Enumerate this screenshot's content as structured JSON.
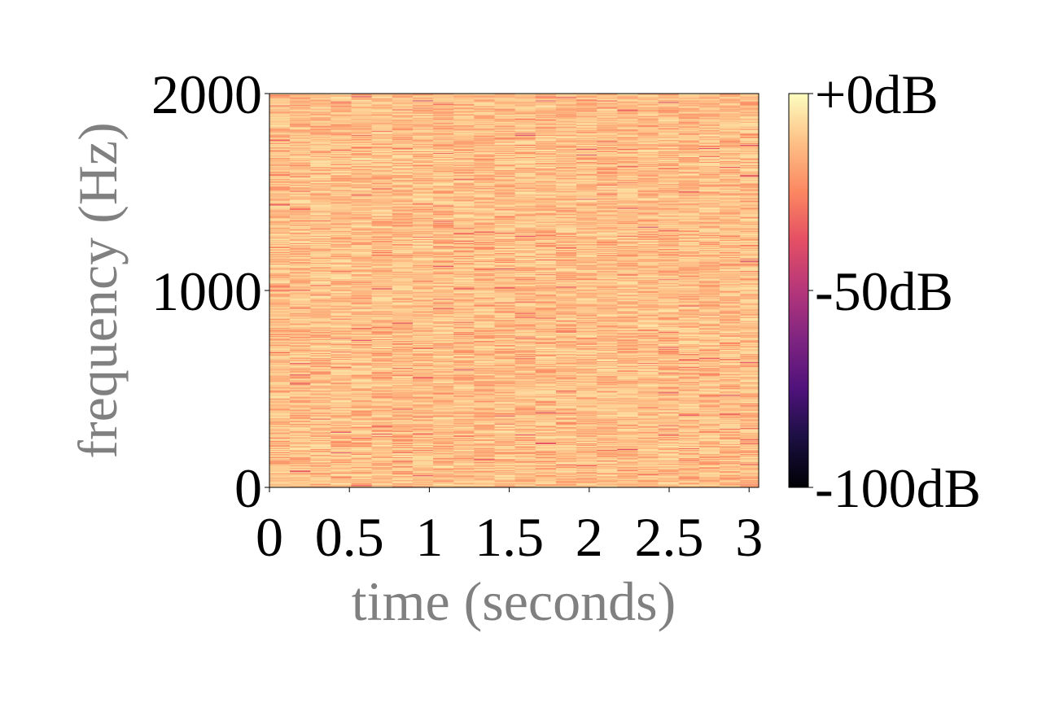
{
  "chart_data": {
    "type": "heatmap",
    "title": "",
    "xlabel": "time (seconds)",
    "ylabel": "frequency (Hz)",
    "xlim": [
      0,
      3.06
    ],
    "ylim": [
      0,
      2000
    ],
    "x_ticks": [
      {
        "value": 0,
        "label": "0"
      },
      {
        "value": 0.5,
        "label": "0.5"
      },
      {
        "value": 1,
        "label": "1"
      },
      {
        "value": 1.5,
        "label": "1.5"
      },
      {
        "value": 2,
        "label": "2"
      },
      {
        "value": 2.5,
        "label": "2.5"
      },
      {
        "value": 3,
        "label": "3"
      }
    ],
    "y_ticks": [
      {
        "value": 0,
        "label": "0"
      },
      {
        "value": 1000,
        "label": "1000"
      },
      {
        "value": 2000,
        "label": "2000"
      }
    ],
    "colorbar": {
      "colormap": "magma",
      "range_db": [
        -100,
        0
      ],
      "ticks": [
        {
          "value": 0,
          "label": "+0dB"
        },
        {
          "value": -50,
          "label": "-50dB"
        },
        {
          "value": -100,
          "label": "-100dB"
        }
      ]
    },
    "time_frames": 24,
    "frame_duration_s": 0.128,
    "frequency_bins": 480,
    "typical_level_db": [
      -25,
      -5
    ],
    "colors": {
      "axis_label": "#808080",
      "tick_label": "#000000",
      "magma_stops": [
        "#000004",
        "#3b0f70",
        "#8c2981",
        "#de4968",
        "#fe9f6d",
        "#fcfdbf"
      ]
    }
  }
}
